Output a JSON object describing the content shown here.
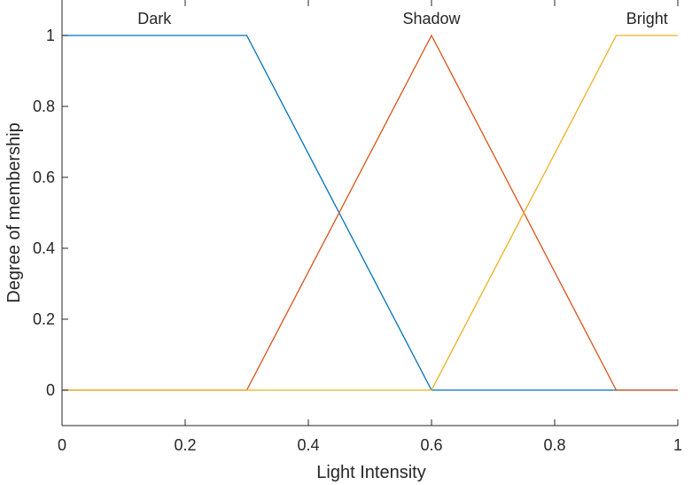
{
  "chart_data": {
    "type": "line",
    "title": "",
    "xlabel": "Light Intensity",
    "ylabel": "Degree of membership",
    "xlim": [
      0,
      1
    ],
    "ylim": [
      -0.1,
      1.1
    ],
    "xticks": [
      0,
      0.2,
      0.4,
      0.6,
      0.8,
      1
    ],
    "xtick_labels": [
      "0",
      "0.2",
      "0.4",
      "0.6",
      "0.8",
      "1"
    ],
    "yticks": [
      0,
      0.2,
      0.4,
      0.6,
      0.8,
      1
    ],
    "ytick_labels": [
      "0",
      "0.2",
      "0.4",
      "0.6",
      "0.8",
      "1"
    ],
    "grid": false,
    "legend": "none",
    "series": [
      {
        "name": "Dark",
        "color": "#0072BD",
        "label_x": 0.15,
        "points": [
          [
            0,
            1
          ],
          [
            0.3,
            1
          ],
          [
            0.6,
            0
          ],
          [
            1,
            0
          ]
        ]
      },
      {
        "name": "Shadow",
        "color": "#D95319",
        "label_x": 0.6,
        "points": [
          [
            0,
            0
          ],
          [
            0.3,
            0
          ],
          [
            0.6,
            1
          ],
          [
            0.9,
            0
          ],
          [
            1,
            0
          ]
        ]
      },
      {
        "name": "Bright",
        "color": "#EDB120",
        "label_x": 0.95,
        "points": [
          [
            0,
            0
          ],
          [
            0.6,
            0
          ],
          [
            0.9,
            1
          ],
          [
            1,
            1
          ]
        ]
      }
    ]
  }
}
